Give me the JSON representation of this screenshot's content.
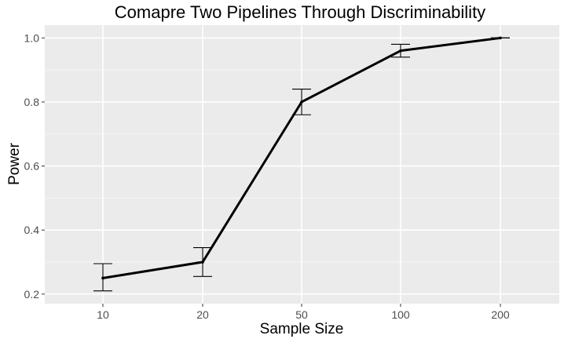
{
  "chart_data": {
    "type": "line",
    "title": "Comapre Two Pipelines Through Discriminability",
    "xlabel": "Sample Size",
    "ylabel": "Power",
    "categories": [
      "10",
      "20",
      "50",
      "100",
      "200"
    ],
    "series": [
      {
        "values": [
          0.25,
          0.3,
          0.8,
          0.96,
          1.0
        ],
        "error_low": [
          0.21,
          0.255,
          0.76,
          0.94,
          1.0
        ],
        "error_high": [
          0.295,
          0.345,
          0.84,
          0.98,
          1.0
        ],
        "color": "#000000"
      }
    ],
    "ylim": [
      0.17,
      1.04
    ],
    "yticks": [
      0.2,
      0.4,
      0.6,
      0.8,
      1.0
    ],
    "ytick_labels": [
      "0.2",
      "0.4",
      "0.6",
      "0.8",
      "1.0"
    ],
    "grid": true,
    "legend": "none",
    "colors": {
      "panel": "#ebebeb",
      "grid_major": "#ffffff",
      "line": "#000000"
    }
  }
}
